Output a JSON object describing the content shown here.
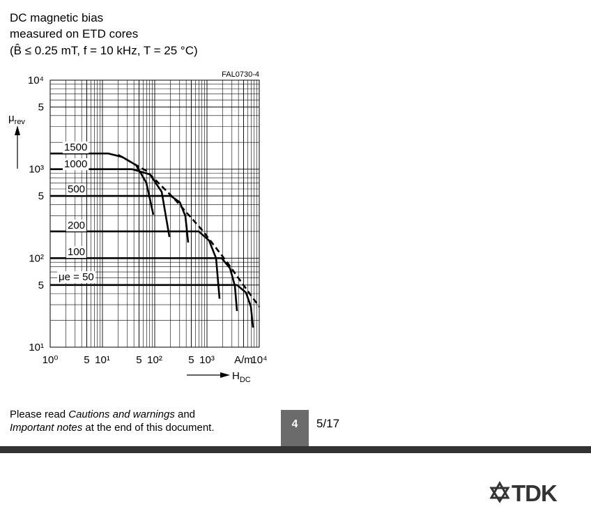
{
  "header": {
    "lines": [
      "DC magnetic bias",
      "measured on ETD cores",
      "(B̂ ≤ 0.25 mT, f = 10 kHz, T = 25 °C)"
    ]
  },
  "chart_data": {
    "type": "line",
    "code": "FAL0730-4",
    "y_label": {
      "symbol": "μ",
      "subscript": "rev"
    },
    "x_label": {
      "symbol": "H",
      "subscript": "DC"
    },
    "xscale": "log",
    "yscale": "log",
    "xlim": [
      1,
      10000
    ],
    "ylim": [
      10,
      10000
    ],
    "xticks": [
      {
        "value": 1,
        "label": "10⁰"
      },
      5,
      {
        "value": 10,
        "label": "10¹"
      },
      5,
      {
        "value": 100,
        "label": "10²"
      },
      5,
      {
        "value": 1000,
        "label": "10³"
      },
      {
        "value": 5000,
        "label": "A/m"
      },
      {
        "value": 10000,
        "label": "10⁴"
      }
    ],
    "yticks": [
      {
        "value": 10,
        "label": "10¹"
      },
      {
        "value": 50,
        "label": "5"
      },
      {
        "value": 100,
        "label": "10²"
      },
      {
        "value": 500,
        "label": "5"
      },
      {
        "value": 1000,
        "label": "10³"
      },
      {
        "value": 5000,
        "label": "5"
      },
      {
        "value": 10000,
        "label": "10⁴"
      }
    ],
    "grid": true,
    "x_minor_grid": [
      2,
      3,
      4,
      5,
      6,
      7,
      8,
      9,
      20,
      30,
      40,
      50,
      60,
      70,
      80,
      90,
      200,
      300,
      400,
      500,
      600,
      700,
      800,
      900,
      2000,
      3000,
      4000,
      5000,
      6000,
      7000,
      8000,
      9000
    ],
    "y_minor_grid": [
      20,
      30,
      40,
      50,
      60,
      70,
      80,
      90,
      200,
      300,
      400,
      500,
      600,
      700,
      800,
      900,
      2000,
      3000,
      4000,
      5000,
      6000,
      7000,
      8000,
      9000
    ],
    "series": [
      {
        "name": "1500",
        "color": "#000000",
        "x": [
          1,
          13,
          24,
          44,
          69,
          94
        ],
        "values": [
          1500,
          1500,
          1370,
          1110,
          705,
          308
        ]
      },
      {
        "name": "1000",
        "color": "#000000",
        "x": [
          1,
          37,
          81,
          136,
          191
        ],
        "values": [
          1000,
          1000,
          875,
          557,
          173
        ]
      },
      {
        "name": "500",
        "color": "#000000",
        "x": [
          1,
          203,
          302,
          386,
          437
        ],
        "values": [
          500,
          500,
          425,
          297,
          150
        ]
      },
      {
        "name": "200",
        "color": "#000000",
        "x": [
          1,
          692,
          1096,
          1490,
          1738
        ],
        "values": [
          200,
          200,
          158,
          100,
          35
        ]
      },
      {
        "name": "100",
        "color": "#000000",
        "x": [
          1,
          1905,
          2754,
          3415,
          3744
        ],
        "values": [
          100,
          100,
          77,
          49,
          25.5
        ]
      },
      {
        "name": "μe = 50",
        "color": "#000000",
        "x": [
          1,
          3744,
          5580,
          6918,
          7586
        ],
        "values": [
          50,
          50,
          41,
          28.5,
          16.6
        ]
      },
      {
        "color": "#000000",
        "dash": true,
        "x": [
          20,
          69,
          236,
          807,
          2362,
          5090,
          10000
        ],
        "values": [
          1450,
          958,
          466,
          207,
          92,
          49,
          28.5
        ]
      }
    ]
  },
  "footer": {
    "note_line1": [
      "Please read ",
      "Cautions and warnings",
      " and"
    ],
    "note_line2": [
      "Important notes",
      " at the end of this document."
    ],
    "page_box": "4",
    "page_count": "5/17",
    "logo": "TDK"
  }
}
